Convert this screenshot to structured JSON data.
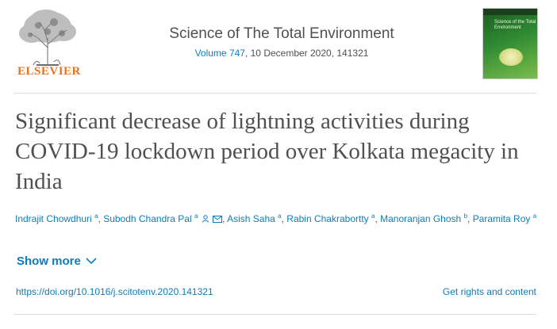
{
  "header": {
    "publisher": "ELSEVIER",
    "journal_title": "Science of The Total Environment",
    "volume_link": "Volume 747",
    "issue_rest": ", 10 December 2020, 141321",
    "cover_text": "Science of the Total Environment"
  },
  "article": {
    "title": "Significant decrease of lightning activities during COVID-19 lockdown period over Kolkata megacity in India"
  },
  "authors": [
    {
      "name": "Indrajit Chowdhuri",
      "sup": "a"
    },
    {
      "name": "Subodh Chandra Pal",
      "sup": "a"
    },
    {
      "name": "Asish Saha",
      "sup": "a"
    },
    {
      "name": "Rabin Chakrabortty",
      "sup": "a"
    },
    {
      "name": "Manoranjan Ghosh",
      "sup": "b"
    },
    {
      "name": "Paramita Roy",
      "sup": "a"
    }
  ],
  "show_more_label": "Show more",
  "doi": "https://doi.org/10.1016/j.scitotenv.2020.141321",
  "rights_label": "Get rights and content",
  "colors": {
    "link": "#0c7dbb",
    "publisher": "#e9711c",
    "text": "#505050"
  },
  "icons": [
    "person-icon",
    "envelope-icon",
    "chevron-down-icon"
  ]
}
